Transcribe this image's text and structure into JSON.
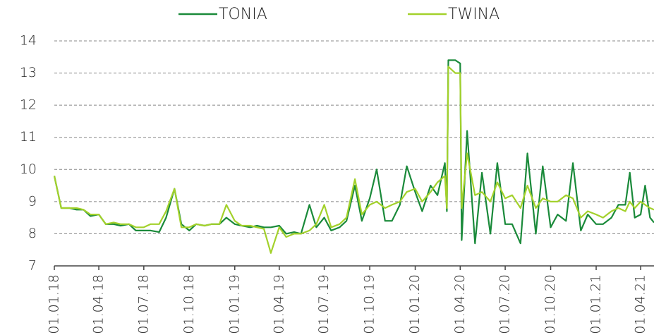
{
  "chart_data": {
    "type": "line",
    "legend": "top",
    "grid": true,
    "x": [
      "2018-01-01",
      "2018-01-15",
      "2018-02-01",
      "2018-02-15",
      "2018-03-01",
      "2018-03-15",
      "2018-04-01",
      "2018-04-15",
      "2018-05-01",
      "2018-05-15",
      "2018-06-01",
      "2018-06-15",
      "2018-07-01",
      "2018-07-15",
      "2018-08-01",
      "2018-08-15",
      "2018-09-01",
      "2018-09-15",
      "2018-10-01",
      "2018-10-15",
      "2018-11-01",
      "2018-11-15",
      "2018-12-01",
      "2018-12-15",
      "2019-01-01",
      "2019-01-15",
      "2019-02-01",
      "2019-02-15",
      "2019-03-01",
      "2019-03-15",
      "2019-04-01",
      "2019-04-15",
      "2019-05-01",
      "2019-05-15",
      "2019-06-01",
      "2019-06-15",
      "2019-07-01",
      "2019-07-15",
      "2019-08-01",
      "2019-08-15",
      "2019-09-01",
      "2019-09-15",
      "2019-10-01",
      "2019-10-15",
      "2019-11-01",
      "2019-11-15",
      "2019-12-01",
      "2019-12-15",
      "2020-01-01",
      "2020-01-15",
      "2020-02-01",
      "2020-02-15",
      "2020-03-01",
      "2020-03-05",
      "2020-03-08",
      "2020-03-22",
      "2020-04-01",
      "2020-04-04",
      "2020-04-15",
      "2020-05-01",
      "2020-05-15",
      "2020-06-01",
      "2020-06-15",
      "2020-07-01",
      "2020-07-15",
      "2020-08-01",
      "2020-08-15",
      "2020-09-01",
      "2020-09-15",
      "2020-10-01",
      "2020-10-15",
      "2020-11-01",
      "2020-11-15",
      "2020-12-01",
      "2020-12-15",
      "2021-01-01",
      "2021-01-15",
      "2021-02-01",
      "2021-02-15",
      "2021-03-01",
      "2021-03-10",
      "2021-03-20",
      "2021-04-01",
      "2021-04-10",
      "2021-04-20",
      "2021-04-28"
    ],
    "series": [
      {
        "name": "TONIA",
        "color": "#1a8a3a",
        "values": [
          9.8,
          8.8,
          8.8,
          8.75,
          8.75,
          8.55,
          8.6,
          8.3,
          8.3,
          8.25,
          8.3,
          8.1,
          8.1,
          8.1,
          8.05,
          8.5,
          9.4,
          8.3,
          8.1,
          8.3,
          8.25,
          8.3,
          8.3,
          8.5,
          8.3,
          8.25,
          8.2,
          8.25,
          8.2,
          8.2,
          8.25,
          8.0,
          8.05,
          8.0,
          8.9,
          8.2,
          8.5,
          8.1,
          8.2,
          8.4,
          9.5,
          8.4,
          9.1,
          10.0,
          8.4,
          8.4,
          8.9,
          10.1,
          9.3,
          8.7,
          9.5,
          9.2,
          10.2,
          8.7,
          13.4,
          13.4,
          13.3,
          7.8,
          11.2,
          7.7,
          9.9,
          8.0,
          10.2,
          8.3,
          8.3,
          7.7,
          10.5,
          8.0,
          10.1,
          8.2,
          8.6,
          8.4,
          10.2,
          8.1,
          8.6,
          8.3,
          8.3,
          8.5,
          8.9,
          8.9,
          9.9,
          8.5,
          8.6,
          9.5,
          8.5,
          8.35
        ]
      },
      {
        "name": "TWINA",
        "color": "#a3d12b",
        "values": [
          9.8,
          8.8,
          8.8,
          8.8,
          8.75,
          8.6,
          8.6,
          8.3,
          8.35,
          8.3,
          8.3,
          8.2,
          8.2,
          8.3,
          8.3,
          8.7,
          9.4,
          8.2,
          8.2,
          8.3,
          8.25,
          8.3,
          8.3,
          8.9,
          8.4,
          8.25,
          8.25,
          8.2,
          8.15,
          7.4,
          8.2,
          7.9,
          8.0,
          8.0,
          8.1,
          8.3,
          8.9,
          8.2,
          8.3,
          8.5,
          9.7,
          8.6,
          8.9,
          9.0,
          8.8,
          8.9,
          9.0,
          9.3,
          9.4,
          9.0,
          9.3,
          9.6,
          9.8,
          8.8,
          13.2,
          13.0,
          13.0,
          8.8,
          10.5,
          9.2,
          9.3,
          9.0,
          9.6,
          9.1,
          9.2,
          8.8,
          9.5,
          8.8,
          9.1,
          9.0,
          9.0,
          9.2,
          9.1,
          8.5,
          8.7,
          8.6,
          8.5,
          8.7,
          8.8,
          8.7,
          9.0,
          8.8,
          9.0,
          8.9,
          8.8,
          8.75
        ]
      }
    ],
    "xlim": [
      "2018-01-01",
      "2021-04-28"
    ],
    "xticks": [
      {
        "value": "2018-01-01",
        "label": "01.01.18"
      },
      {
        "value": "2018-04-01",
        "label": "01.04.18"
      },
      {
        "value": "2018-07-01",
        "label": "01.07.18"
      },
      {
        "value": "2018-10-01",
        "label": "01.10.18"
      },
      {
        "value": "2019-01-01",
        "label": "01.01.19"
      },
      {
        "value": "2019-04-01",
        "label": "01.04.19"
      },
      {
        "value": "2019-07-01",
        "label": "01.07.19"
      },
      {
        "value": "2019-10-01",
        "label": "01.10.19"
      },
      {
        "value": "2020-01-01",
        "label": "01.01.20"
      },
      {
        "value": "2020-04-01",
        "label": "01.04.20"
      },
      {
        "value": "2020-07-01",
        "label": "01.07.20"
      },
      {
        "value": "2020-10-01",
        "label": "01.10.20"
      },
      {
        "value": "2021-01-01",
        "label": "01.01.21"
      },
      {
        "value": "2021-04-01",
        "label": "01.04.21"
      }
    ],
    "ylim": [
      7,
      14
    ],
    "yticks": [
      7,
      8,
      9,
      10,
      11,
      12,
      13,
      14
    ]
  }
}
